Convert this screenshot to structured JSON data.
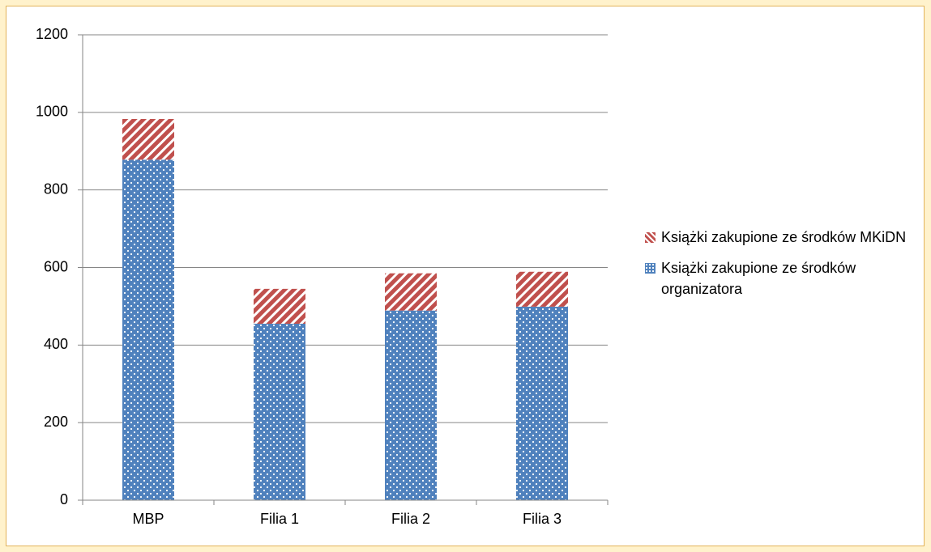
{
  "chart_data": {
    "type": "stacked_bar",
    "categories": [
      "MBP",
      "Filia 1",
      "Filia 2",
      "Filia 3"
    ],
    "series": [
      {
        "name": "Książki zakupione ze środków organizatora",
        "color": "#4f81bd",
        "values": [
          878,
          455,
          489,
          499
        ]
      },
      {
        "name": "Książki zakupione ze środków MKiDN",
        "color": "#c0504d",
        "values": [
          105,
          90,
          96,
          90
        ]
      }
    ],
    "ylim": [
      0,
      1200
    ],
    "yticks": [
      0,
      200,
      400,
      600,
      800,
      1000,
      1200
    ],
    "grid": true,
    "legend": "right"
  }
}
